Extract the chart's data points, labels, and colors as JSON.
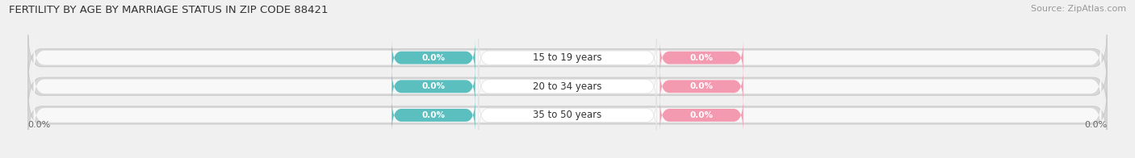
{
  "title": "FERTILITY BY AGE BY MARRIAGE STATUS IN ZIP CODE 88421",
  "source": "Source: ZipAtlas.com",
  "age_groups": [
    "15 to 19 years",
    "20 to 34 years",
    "35 to 50 years"
  ],
  "married_values": [
    0.0,
    0.0,
    0.0
  ],
  "unmarried_values": [
    0.0,
    0.0,
    0.0
  ],
  "married_color": "#5bbfbf",
  "unmarried_color": "#f49ab0",
  "bar_outer_color": "#d8d8d8",
  "bar_inner_color": "#f0f0f0",
  "background_color": "#f0f0f0",
  "title_fontsize": 9.5,
  "source_fontsize": 8,
  "label_fontsize": 8.5,
  "value_fontsize": 7.5,
  "x_left_label": "0.0%",
  "x_right_label": "0.0%",
  "bar_height": 0.62,
  "center_label_color": "#ffffff",
  "center_text_color": "#333333"
}
